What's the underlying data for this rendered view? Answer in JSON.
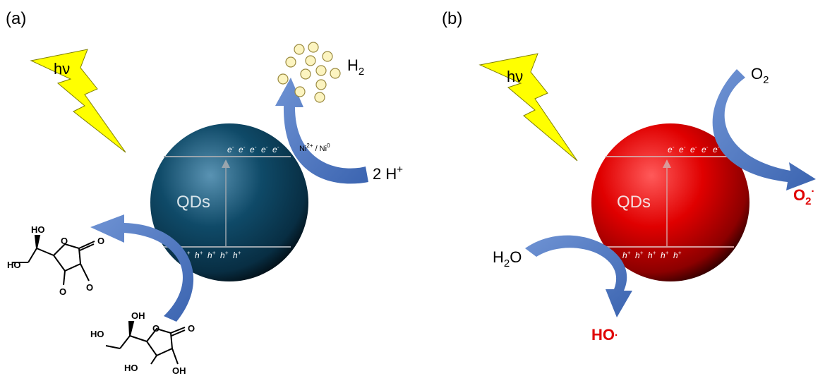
{
  "panel_a": {
    "label": "(a)",
    "light": "hν",
    "particle": "QDs",
    "electrons": [
      "e",
      "e",
      "e",
      "e",
      "e"
    ],
    "electron_sup": "-",
    "holes": [
      "h",
      "h",
      "h",
      "h",
      "h"
    ],
    "hole_sup": "+",
    "cocatalyst_a": "Ni",
    "cocatalyst_a_sup": "2+",
    "cocatalyst_sep": " / Ni",
    "cocatalyst_b_sup": "0",
    "product": "H",
    "product_sub": "2",
    "reactant": "2 H",
    "reactant_sup": "+",
    "mol_labels": {
      "oxidized": [
        "HO",
        "HO",
        "O",
        "O",
        "O",
        "O"
      ],
      "reduced": [
        "OH",
        "HO",
        "O",
        "O",
        "HO",
        "OH"
      ]
    },
    "sphere_color": "#0e4a66"
  },
  "panel_b": {
    "label": "(b)",
    "light": "hν",
    "particle": "QDs",
    "electrons": [
      "e",
      "e",
      "e",
      "e",
      "e"
    ],
    "electron_sup": "-",
    "holes": [
      "h",
      "h",
      "h",
      "h",
      "h"
    ],
    "hole_sup": "+",
    "reactant_top": "O",
    "reactant_top_sub": "2",
    "product_top": "O",
    "product_top_sub": "2",
    "product_top_sup": "·",
    "reactant_bottom": "H",
    "reactant_bottom_sub": "2",
    "reactant_bottom_tail": "O",
    "product_bottom": "HO",
    "product_bottom_sup": "·",
    "sphere_color": "#cc0000",
    "product_color": "#e00000"
  }
}
